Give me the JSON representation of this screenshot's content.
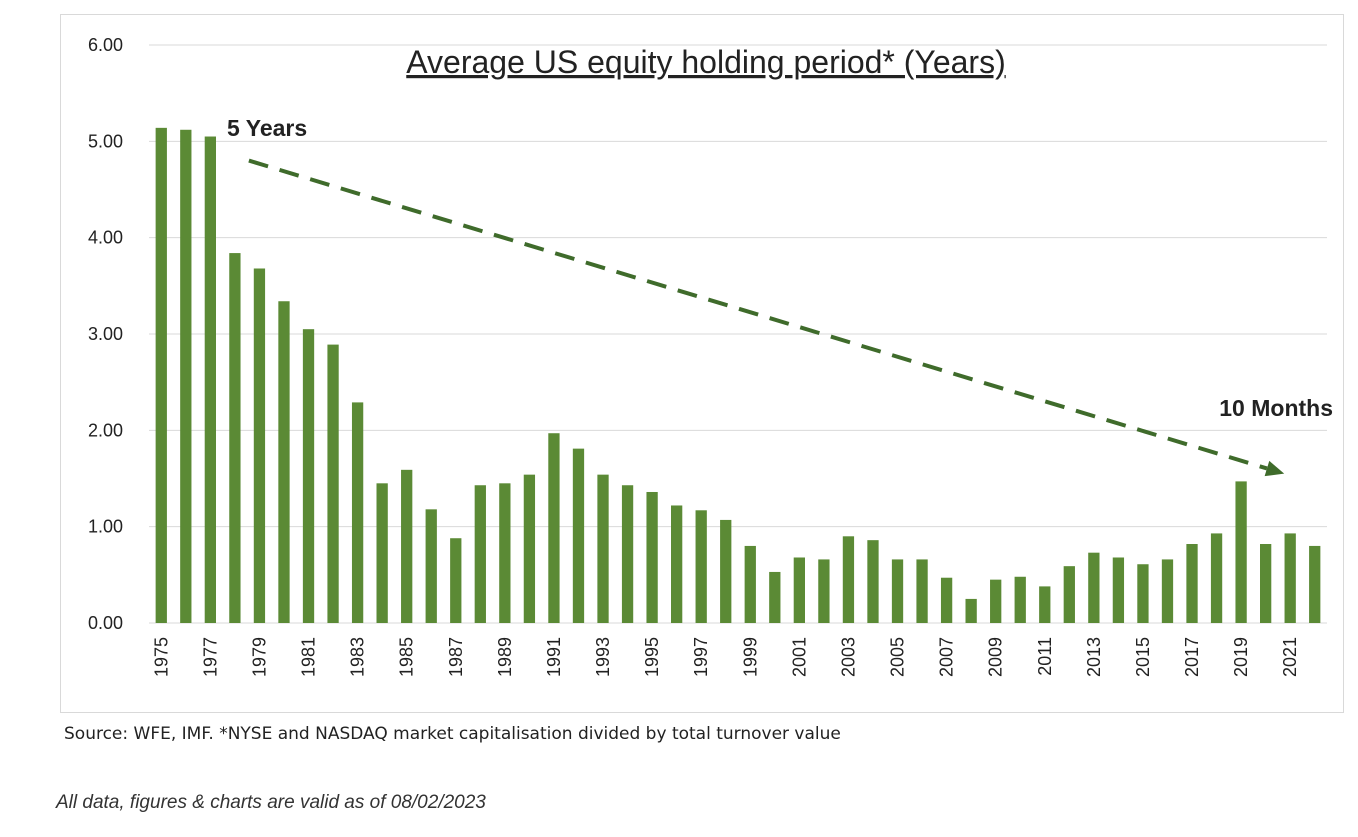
{
  "chart_data": {
    "type": "bar",
    "title": "Average US equity holding period* (Years)",
    "xlabel": "",
    "ylabel": "",
    "ylim": [
      0,
      6
    ],
    "yticks": [
      "0.00",
      "1.00",
      "2.00",
      "3.00",
      "4.00",
      "5.00",
      "6.00"
    ],
    "grid": true,
    "bar_color": "#5B8A35",
    "categories": [
      "1975",
      "1976",
      "1977",
      "1978",
      "1979",
      "1980",
      "1981",
      "1982",
      "1983",
      "1984",
      "1985",
      "1986",
      "1987",
      "1988",
      "1989",
      "1990",
      "1991",
      "1992",
      "1993",
      "1994",
      "1995",
      "1996",
      "1997",
      "1998",
      "1999",
      "2000",
      "2001",
      "2002",
      "2003",
      "2004",
      "2005",
      "2006",
      "2007",
      "2008",
      "2009",
      "2010",
      "2011",
      "2012",
      "2013",
      "2014",
      "2015",
      "2016",
      "2017",
      "2018",
      "2019",
      "2020",
      "2021",
      "2022"
    ],
    "tick_labels": [
      "1975",
      "1977",
      "1979",
      "1981",
      "1983",
      "1985",
      "1987",
      "1989",
      "1991",
      "1993",
      "1995",
      "1997",
      "1999",
      "2001",
      "2003",
      "2005",
      "2007",
      "2009",
      "2011",
      "2013",
      "2015",
      "2017",
      "2019",
      "2021"
    ],
    "values": [
      5.14,
      5.12,
      5.05,
      3.84,
      3.68,
      3.34,
      3.05,
      2.89,
      2.29,
      1.45,
      1.59,
      1.18,
      0.88,
      1.43,
      1.45,
      1.54,
      1.97,
      1.81,
      1.54,
      1.43,
      1.36,
      1.22,
      1.17,
      1.07,
      0.8,
      0.53,
      0.68,
      0.66,
      0.9,
      0.86,
      0.66,
      0.66,
      0.47,
      0.25,
      0.45,
      0.48,
      0.38,
      0.59,
      0.73,
      0.68,
      0.61,
      0.66,
      0.82,
      0.93,
      1.47,
      0.82,
      0.93,
      0.8
    ],
    "annotations": [
      {
        "text": "5 Years"
      },
      {
        "text": "10 Months"
      }
    ],
    "trend_arrow": {
      "from": [
        "1978",
        4.8
      ],
      "to": [
        "2021",
        1.55
      ],
      "color": "#3f6b2b",
      "style": "dashed"
    }
  },
  "footer": {
    "source": "Source: WFE, IMF. *NYSE and NASDAQ market capitalisation divided by total turnover value",
    "validity": "All data, figures & charts are valid as of 08/02/2023"
  }
}
